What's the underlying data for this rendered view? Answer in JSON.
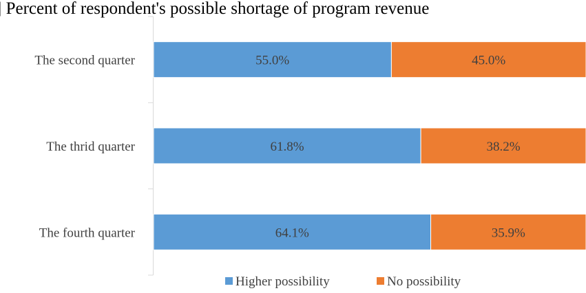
{
  "chart_data": {
    "type": "bar",
    "orientation": "horizontal",
    "stacked": true,
    "title": "] Percent of respondent's possible shortage of program revenue",
    "categories": [
      "The second quarter",
      "The thrid quarter",
      "The fourth quarter"
    ],
    "series": [
      {
        "name": "Higher possibility",
        "values": [
          55.0,
          61.8,
          64.1
        ],
        "labels": [
          "55.0%",
          "61.8%",
          "64.1%"
        ],
        "color": "#5b9bd5"
      },
      {
        "name": "No possibility",
        "values": [
          45.0,
          38.2,
          35.9
        ],
        "labels": [
          "45.0%",
          "38.2%",
          "35.9%"
        ],
        "color": "#ed7d31"
      }
    ],
    "xlim": [
      0,
      100
    ],
    "grid": false,
    "legend": "bottom"
  }
}
